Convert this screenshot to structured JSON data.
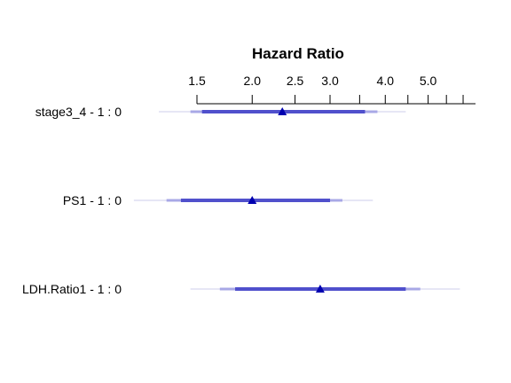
{
  "chart_data": {
    "type": "forest",
    "axis_title": "Hazard Ratio",
    "x_scale": "log",
    "x_ticks": [
      1.5,
      2.0,
      2.5,
      3.0,
      4.0,
      5.0
    ],
    "x_tick_labels": [
      "1.5",
      "2.0",
      "2.5",
      "3.0",
      "4.0",
      "5.0"
    ],
    "x_minor_ticks": [
      3.5,
      4.5,
      5.5,
      6.0
    ],
    "xlim": [
      1.5,
      6.4
    ],
    "colors": {
      "point": "#0000b0",
      "inner": "#5050cc",
      "middle": "#a8a8e6",
      "outer": "#e6e6f5",
      "axis": "#000000"
    },
    "rows": [
      {
        "label": "stage3_4 - 1 : 0",
        "hr": 2.34,
        "ci_inner": [
          1.54,
          3.6
        ],
        "ci_middle": [
          1.45,
          3.84
        ],
        "ci_outer": [
          1.23,
          4.45
        ]
      },
      {
        "label": "PS1 - 1 : 0",
        "hr": 2.0,
        "ci_inner": [
          1.38,
          3.0
        ],
        "ci_middle": [
          1.28,
          3.2
        ],
        "ci_outer": [
          1.08,
          3.75
        ]
      },
      {
        "label": "LDH.Ratio1 - 1 : 0",
        "hr": 2.85,
        "ci_inner": [
          1.83,
          4.45
        ],
        "ci_middle": [
          1.69,
          4.8
        ],
        "ci_outer": [
          1.45,
          5.9
        ]
      }
    ]
  }
}
